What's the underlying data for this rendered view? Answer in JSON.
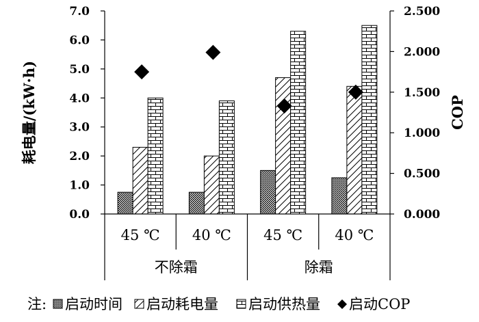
{
  "chart_data": {
    "type": "bar",
    "ylabel": "耗电量/(kW·h)",
    "y2label": "COP",
    "ylim": [
      0,
      7
    ],
    "y2lim": [
      0,
      2.5
    ],
    "yticks": [
      "0.0",
      "1.0",
      "2.0",
      "3.0",
      "4.0",
      "5.0",
      "6.0",
      "7.0"
    ],
    "y2ticks": [
      "0.000",
      "0.500",
      "1.000",
      "1.500",
      "2.000",
      "2.500"
    ],
    "categories": [
      "45 ℃",
      "40 ℃",
      "45 ℃",
      "40 ℃"
    ],
    "groups": [
      {
        "label": "不除霜",
        "span": [
          0,
          1
        ]
      },
      {
        "label": "除霜",
        "span": [
          2,
          3
        ]
      }
    ],
    "series": [
      {
        "name": "启动时间",
        "axis": "left",
        "kind": "bar",
        "pattern": "dots",
        "values": [
          0.75,
          0.75,
          1.5,
          1.25
        ]
      },
      {
        "name": "启动耗电量",
        "axis": "left",
        "kind": "bar",
        "pattern": "diagonal",
        "values": [
          2.3,
          2.0,
          4.7,
          4.4
        ]
      },
      {
        "name": "启动供热量",
        "axis": "left",
        "kind": "bar",
        "pattern": "brick",
        "values": [
          4.0,
          3.9,
          6.3,
          6.5
        ]
      },
      {
        "name": "启动COP",
        "axis": "right",
        "kind": "marker",
        "values": [
          1.75,
          1.99,
          1.33,
          1.5
        ]
      }
    ],
    "legend_prefix": "注:",
    "legend_position": "bottom",
    "grid": false
  }
}
